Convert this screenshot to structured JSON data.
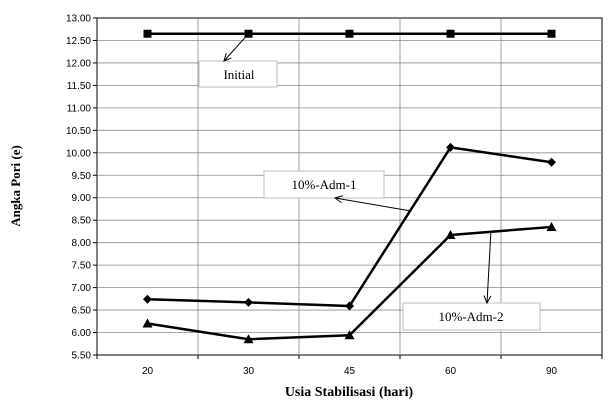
{
  "chart_data": {
    "type": "line",
    "xlabel": "Usia Stabilisasi (hari)",
    "ylabel": "Angka Pori (e)",
    "categories": [
      "20",
      "30",
      "45",
      "60",
      "90"
    ],
    "ylim": [
      5.5,
      13.0
    ],
    "ystep": 0.5,
    "grid": {
      "horizontal": true,
      "vertical": true
    },
    "series": [
      {
        "name": "Initial",
        "values": [
          12.65,
          12.65,
          12.65,
          12.65,
          12.65
        ],
        "marker": "square"
      },
      {
        "name": "10%-Adm-1",
        "values": [
          6.74,
          6.67,
          6.59,
          10.12,
          9.79
        ],
        "marker": "diamond"
      },
      {
        "name": "10%-Adm-2",
        "values": [
          6.2,
          5.85,
          5.94,
          8.17,
          8.35
        ],
        "marker": "triangle"
      }
    ],
    "annotations": [
      {
        "text": "Initial",
        "series": "Initial",
        "points_to_index": 1
      },
      {
        "text": "10%-Adm-1",
        "series": "10%-Adm-1",
        "points_to_index": 2.6
      },
      {
        "text": "10%-Adm-2",
        "series": "10%-Adm-2",
        "points_to_index": 3.4
      }
    ]
  }
}
